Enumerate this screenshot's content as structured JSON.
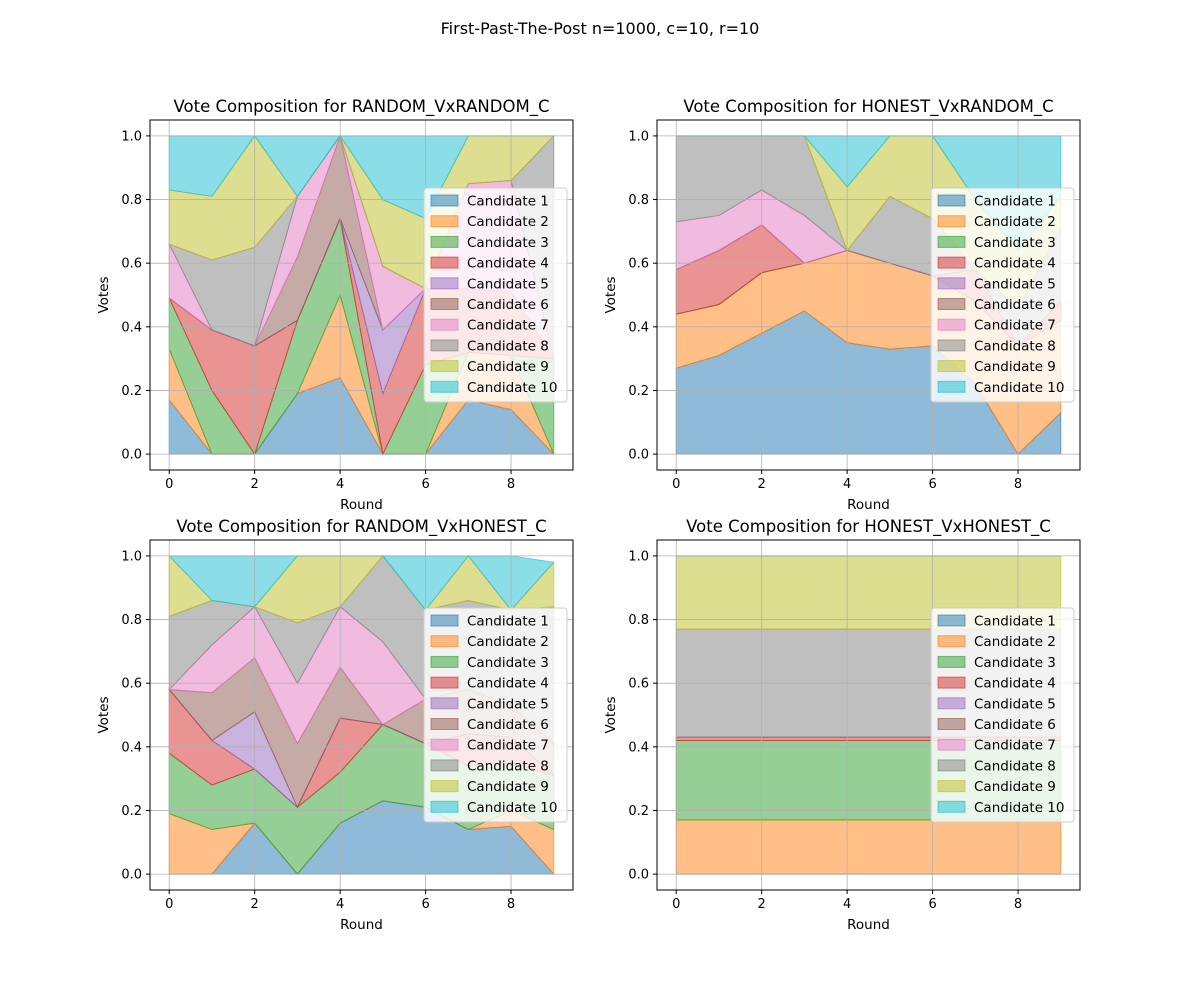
{
  "suptitle": "First-Past-The-Post n=1000, c=10, r=10",
  "legend_labels": [
    "Candidate 1",
    "Candidate 2",
    "Candidate 3",
    "Candidate 4",
    "Candidate 5",
    "Candidate 6",
    "Candidate 7",
    "Candidate 8",
    "Candidate 9",
    "Candidate 10"
  ],
  "colors": [
    "#1f77b4",
    "#ff7f0e",
    "#2ca02c",
    "#d62728",
    "#9467bd",
    "#8c564b",
    "#e377c2",
    "#7f7f7f",
    "#bcbd22",
    "#17becf"
  ],
  "chart_data": [
    {
      "type": "area",
      "title": "Vote Composition for RANDOM_VxRANDOM_C",
      "xlabel": "Round",
      "ylabel": "Votes",
      "x": [
        0,
        1,
        2,
        3,
        4,
        5,
        6,
        7,
        8,
        9
      ],
      "xticks": [
        "0",
        "2",
        "4",
        "6",
        "8"
      ],
      "yticks": [
        "0.0",
        "0.2",
        "0.4",
        "0.6",
        "0.8",
        "1.0"
      ],
      "xlim": [
        -0.45,
        9.45
      ],
      "ylim": [
        -0.05,
        1.05
      ],
      "grid": true,
      "legend_position": "center-right",
      "series": [
        {
          "name": "Candidate 1",
          "values": [
            0.17,
            0,
            0,
            0.19,
            0.24,
            0,
            0,
            0.17,
            0.14,
            0
          ]
        },
        {
          "name": "Candidate 2",
          "values": [
            0.16,
            0,
            0,
            0,
            0.26,
            0,
            0,
            0.15,
            0.17,
            0
          ]
        },
        {
          "name": "Candidate 3",
          "values": [
            0.16,
            0.2,
            0,
            0.23,
            0.24,
            0,
            0.28,
            0,
            0,
            0.3
          ]
        },
        {
          "name": "Candidate 4",
          "values": [
            0,
            0.19,
            0.34,
            0,
            0,
            0.19,
            0.24,
            0.2,
            0.2,
            0
          ]
        },
        {
          "name": "Candidate 5",
          "values": [
            0,
            0,
            0,
            0,
            0,
            0.2,
            0,
            0,
            0,
            0
          ]
        },
        {
          "name": "Candidate 6",
          "values": [
            0,
            0,
            0,
            0.2,
            0.26,
            0,
            0,
            0,
            0,
            0
          ]
        },
        {
          "name": "Candidate 7",
          "values": [
            0.17,
            0,
            0,
            0.19,
            0,
            0.2,
            0,
            0.33,
            0.35,
            0
          ]
        },
        {
          "name": "Candidate 8",
          "values": [
            0,
            0.22,
            0.31,
            0,
            0,
            0,
            0,
            0,
            0,
            0.7
          ]
        },
        {
          "name": "Candidate 9",
          "values": [
            0.17,
            0.2,
            0.35,
            0,
            0,
            0.21,
            0.22,
            0.15,
            0.14,
            0
          ]
        },
        {
          "name": "Candidate 10",
          "values": [
            0.17,
            0.19,
            0,
            0.19,
            0,
            0.2,
            0.26,
            0,
            0,
            0
          ]
        }
      ]
    },
    {
      "type": "area",
      "title": "Vote Composition for HONEST_VxRANDOM_C",
      "xlabel": "Round",
      "ylabel": "Votes",
      "x": [
        0,
        1,
        2,
        3,
        4,
        5,
        6,
        7,
        8,
        9
      ],
      "xticks": [
        "0",
        "2",
        "4",
        "6",
        "8"
      ],
      "yticks": [
        "0.0",
        "0.2",
        "0.4",
        "0.6",
        "0.8",
        "1.0"
      ],
      "xlim": [
        -0.45,
        9.45
      ],
      "ylim": [
        -0.05,
        1.05
      ],
      "grid": true,
      "legend_position": "center-right",
      "series": [
        {
          "name": "Candidate 1",
          "values": [
            0.27,
            0.31,
            0.38,
            0.45,
            0.35,
            0.33,
            0.34,
            0.22,
            0,
            0.13
          ]
        },
        {
          "name": "Candidate 2",
          "values": [
            0.17,
            0.16,
            0.19,
            0.15,
            0.29,
            0.27,
            0.22,
            0.26,
            0.34,
            0.29
          ]
        },
        {
          "name": "Candidate 3",
          "values": [
            0,
            0,
            0,
            0,
            0,
            0,
            0,
            0,
            0,
            0
          ]
        },
        {
          "name": "Candidate 4",
          "values": [
            0.14,
            0.17,
            0.15,
            0,
            0,
            0,
            0,
            0.1,
            0,
            0.06
          ]
        },
        {
          "name": "Candidate 5",
          "values": [
            0,
            0,
            0,
            0,
            0,
            0,
            0,
            0,
            0,
            0
          ]
        },
        {
          "name": "Candidate 6",
          "values": [
            0,
            0,
            0,
            0,
            0,
            0,
            0,
            0,
            0,
            0
          ]
        },
        {
          "name": "Candidate 7",
          "values": [
            0.15,
            0.11,
            0.11,
            0.15,
            0,
            0,
            0,
            0,
            0,
            0
          ]
        },
        {
          "name": "Candidate 8",
          "values": [
            0.27,
            0.25,
            0.17,
            0.25,
            0,
            0.21,
            0.18,
            0,
            0.12,
            0.23
          ]
        },
        {
          "name": "Candidate 9",
          "values": [
            0,
            0,
            0,
            0,
            0.2,
            0.19,
            0.26,
            0.22,
            0.18,
            0.1
          ]
        },
        {
          "name": "Candidate 10",
          "values": [
            0,
            0,
            0,
            0,
            0.16,
            0,
            0,
            0.2,
            0.36,
            0.19
          ]
        }
      ]
    },
    {
      "type": "area",
      "title": "Vote Composition for RANDOM_VxHONEST_C",
      "xlabel": "Round",
      "ylabel": "Votes",
      "x": [
        0,
        1,
        2,
        3,
        4,
        5,
        6,
        7,
        8,
        9
      ],
      "xticks": [
        "0",
        "2",
        "4",
        "6",
        "8"
      ],
      "yticks": [
        "0.0",
        "0.2",
        "0.4",
        "0.6",
        "0.8",
        "1.0"
      ],
      "xlim": [
        -0.45,
        9.45
      ],
      "ylim": [
        -0.05,
        1.05
      ],
      "grid": true,
      "legend_position": "center-right",
      "series": [
        {
          "name": "Candidate 1",
          "values": [
            0,
            0,
            0.16,
            0,
            0.16,
            0.23,
            0.21,
            0.14,
            0.15,
            0
          ]
        },
        {
          "name": "Candidate 2",
          "values": [
            0.19,
            0.14,
            0,
            0,
            0,
            0,
            0,
            0,
            0.05,
            0.14
          ]
        },
        {
          "name": "Candidate 3",
          "values": [
            0.19,
            0.14,
            0.17,
            0.21,
            0.16,
            0.24,
            0.2,
            0.2,
            0.15,
            0.17
          ]
        },
        {
          "name": "Candidate 4",
          "values": [
            0.2,
            0.14,
            0,
            0,
            0.17,
            0,
            0,
            0.1,
            0.08,
            0
          ]
        },
        {
          "name": "Candidate 5",
          "values": [
            0,
            0,
            0.18,
            0,
            0,
            0,
            0,
            0,
            0,
            0
          ]
        },
        {
          "name": "Candidate 6",
          "values": [
            0,
            0.15,
            0.17,
            0.2,
            0.16,
            0,
            0.14,
            0.14,
            0.1,
            0.1
          ]
        },
        {
          "name": "Candidate 7",
          "values": [
            0,
            0.15,
            0.16,
            0.19,
            0.19,
            0.26,
            0,
            0,
            0,
            0
          ]
        },
        {
          "name": "Candidate 8",
          "values": [
            0.23,
            0.14,
            0,
            0.19,
            0,
            0.27,
            0.28,
            0.28,
            0.3,
            0.43
          ]
        },
        {
          "name": "Candidate 9",
          "values": [
            0.19,
            0,
            0,
            0.21,
            0.16,
            0,
            0,
            0.14,
            0,
            0.14
          ]
        },
        {
          "name": "Candidate 10",
          "values": [
            0,
            0.14,
            0.16,
            0,
            0,
            0,
            0.17,
            0,
            0.17,
            0
          ]
        }
      ]
    },
    {
      "type": "area",
      "title": "Vote Composition for HONEST_VxHONEST_C",
      "xlabel": "Round",
      "ylabel": "Votes",
      "x": [
        0,
        1,
        2,
        3,
        4,
        5,
        6,
        7,
        8,
        9
      ],
      "xticks": [
        "0",
        "2",
        "4",
        "6",
        "8"
      ],
      "yticks": [
        "0.0",
        "0.2",
        "0.4",
        "0.6",
        "0.8",
        "1.0"
      ],
      "xlim": [
        -0.45,
        9.45
      ],
      "ylim": [
        -0.05,
        1.05
      ],
      "grid": true,
      "legend_position": "center-right",
      "series": [
        {
          "name": "Candidate 1",
          "values": [
            0,
            0,
            0,
            0,
            0,
            0,
            0,
            0,
            0,
            0
          ]
        },
        {
          "name": "Candidate 2",
          "values": [
            0.17,
            0.17,
            0.17,
            0.17,
            0.17,
            0.17,
            0.17,
            0.17,
            0.17,
            0.17
          ]
        },
        {
          "name": "Candidate 3",
          "values": [
            0.25,
            0.25,
            0.25,
            0.25,
            0.25,
            0.25,
            0.25,
            0.25,
            0.25,
            0.25
          ]
        },
        {
          "name": "Candidate 4",
          "values": [
            0.01,
            0.01,
            0.01,
            0.01,
            0.01,
            0.01,
            0.01,
            0.01,
            0.01,
            0.01
          ]
        },
        {
          "name": "Candidate 5",
          "values": [
            0,
            0,
            0,
            0,
            0,
            0,
            0,
            0,
            0,
            0
          ]
        },
        {
          "name": "Candidate 6",
          "values": [
            0,
            0,
            0,
            0,
            0,
            0,
            0,
            0,
            0,
            0
          ]
        },
        {
          "name": "Candidate 7",
          "values": [
            0,
            0,
            0,
            0,
            0,
            0,
            0,
            0,
            0,
            0
          ]
        },
        {
          "name": "Candidate 8",
          "values": [
            0.34,
            0.34,
            0.34,
            0.34,
            0.34,
            0.34,
            0.34,
            0.34,
            0.34,
            0.34
          ]
        },
        {
          "name": "Candidate 9",
          "values": [
            0.23,
            0.23,
            0.23,
            0.23,
            0.23,
            0.23,
            0.23,
            0.23,
            0.23,
            0.23
          ]
        },
        {
          "name": "Candidate 10",
          "values": [
            0,
            0,
            0,
            0,
            0,
            0,
            0,
            0,
            0,
            0
          ]
        }
      ]
    }
  ]
}
